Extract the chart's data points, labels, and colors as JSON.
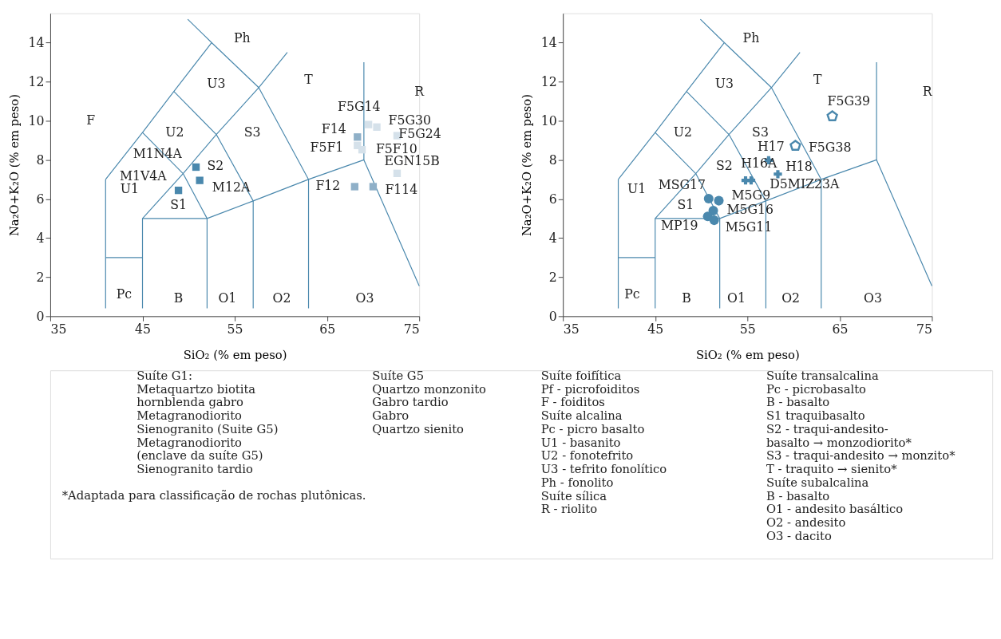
{
  "chart_data": [
    {
      "type": "scatter",
      "xlabel": "SiO₂ (% em peso)",
      "ylabel": "Na₂O+K₂O (% em peso)",
      "xlim": [
        35,
        75
      ],
      "xticks": [
        35,
        45,
        55,
        65,
        75
      ],
      "ylim": [
        0,
        15.5
      ],
      "yticks": [
        0,
        2,
        4,
        6,
        8,
        10,
        12,
        14
      ],
      "grid": false,
      "series": [
        {
          "type": "line",
          "color": "#4a88ad",
          "x": [
            41,
            41
          ],
          "values": [
            0.4,
            7
          ]
        },
        {
          "type": "line",
          "color": "#4a88ad",
          "x": [
            41,
            45
          ],
          "values": [
            3,
            3
          ]
        },
        {
          "type": "line",
          "color": "#4a88ad",
          "x": [
            45,
            45,
            52,
            52
          ],
          "values": [
            0.4,
            5,
            5,
            0.4
          ]
        },
        {
          "type": "line",
          "color": "#4a88ad",
          "x": [
            45,
            49.4,
            53,
            57.6,
            60.7
          ],
          "values": [
            5,
            7.3,
            9.3,
            11.7,
            13.5
          ]
        },
        {
          "type": "line",
          "color": "#4a88ad",
          "x": [
            41,
            45,
            48.4,
            52.5,
            49.9
          ],
          "values": [
            7,
            9.4,
            11.5,
            14,
            15.2
          ]
        },
        {
          "type": "line",
          "color": "#4a88ad",
          "x": [
            45,
            49.4,
            52
          ],
          "values": [
            9.4,
            7.3,
            5
          ]
        },
        {
          "type": "line",
          "color": "#4a88ad",
          "x": [
            48.4,
            53,
            57,
            57
          ],
          "values": [
            11.5,
            9.3,
            5.9,
            0.4
          ]
        },
        {
          "type": "line",
          "color": "#4a88ad",
          "x": [
            52.5,
            57.6,
            63,
            63
          ],
          "values": [
            14,
            11.7,
            7,
            0.4
          ]
        },
        {
          "type": "line",
          "color": "#4a88ad",
          "x": [
            52,
            57,
            63,
            69,
            75
          ],
          "values": [
            5,
            5.9,
            7,
            8,
            1.55
          ]
        },
        {
          "type": "line",
          "color": "#4a88ad",
          "x": [
            69,
            69
          ],
          "values": [
            8,
            13
          ]
        },
        {
          "type": "scatter",
          "marker": "square",
          "color": "#4a88ad",
          "x": [
            50.8,
            51.2,
            48.9
          ],
          "values": [
            7.63,
            6.95,
            6.44
          ],
          "value_labels": [
            "M1N4A",
            "M12A",
            "M1V4A"
          ]
        },
        {
          "type": "scatter",
          "marker": "square",
          "color": "#8fb0c8",
          "x": [
            68.3,
            68.0,
            70.0
          ],
          "values": [
            9.17,
            6.63,
            6.63
          ],
          "value_labels": [
            "F14",
            "F12",
            "F114"
          ]
        },
        {
          "type": "scatter",
          "marker": "square",
          "color": "#d5e1ea",
          "x": [
            69.5,
            70.4,
            72.6,
            68.3,
            68.8,
            72.6
          ],
          "values": [
            9.81,
            9.68,
            9.24,
            8.74,
            8.52,
            7.31
          ],
          "value_labels": [
            "F5G14",
            "F5G30",
            "F5G24",
            "F5F1",
            "F5F10",
            "EGN15B"
          ]
        }
      ],
      "annotations": [
        "Ph",
        "U3",
        "T",
        "R",
        "F",
        "U2",
        "S3",
        "U1",
        "S1",
        "S2",
        "Pc",
        "B",
        "O1",
        "O2",
        "O3",
        "Suíte G1:\nMetaquartzo biotita\nhornblenda gabro\nMetagranodiorito\nSienogranito (Suite G5)\nMetagranodiorito\n(enclave da suíte G5)\nSienogranito tardio",
        "Suíte G5\nQuartzo monzonito\nGabro tardio\nGabro\nQuartzo sienito",
        "*Adaptada para classificação de rochas plutônicas."
      ]
    },
    {
      "type": "scatter",
      "xlabel": "SiO₂ (% em peso)",
      "ylabel": "Na₂O+K₂O (% em peso)",
      "xlim": [
        35,
        75
      ],
      "xticks": [
        35,
        45,
        55,
        65,
        75
      ],
      "ylim": [
        0,
        15.5
      ],
      "yticks": [
        0,
        2,
        4,
        6,
        8,
        10,
        12,
        14
      ],
      "grid": false,
      "series": [
        {
          "type": "line",
          "color": "#4a88ad",
          "x": [
            41,
            41
          ],
          "values": [
            0.4,
            7
          ]
        },
        {
          "type": "line",
          "color": "#4a88ad",
          "x": [
            41,
            45
          ],
          "values": [
            3,
            3
          ]
        },
        {
          "type": "line",
          "color": "#4a88ad",
          "x": [
            45,
            45,
            52,
            52
          ],
          "values": [
            0.4,
            5,
            5,
            0.4
          ]
        },
        {
          "type": "line",
          "color": "#4a88ad",
          "x": [
            45,
            49.4,
            53,
            57.6,
            60.7
          ],
          "values": [
            5,
            7.3,
            9.3,
            11.7,
            13.5
          ]
        },
        {
          "type": "line",
          "color": "#4a88ad",
          "x": [
            41,
            45,
            48.4,
            52.5,
            49.9
          ],
          "values": [
            7,
            9.4,
            11.5,
            14,
            15.2
          ]
        },
        {
          "type": "line",
          "color": "#4a88ad",
          "x": [
            45,
            49.4,
            52
          ],
          "values": [
            9.4,
            7.3,
            5
          ]
        },
        {
          "type": "line",
          "color": "#4a88ad",
          "x": [
            48.4,
            53,
            57,
            57
          ],
          "values": [
            11.5,
            9.3,
            5.9,
            0.4
          ]
        },
        {
          "type": "line",
          "color": "#4a88ad",
          "x": [
            52.5,
            57.6,
            63,
            63
          ],
          "values": [
            14,
            11.7,
            7,
            0.4
          ]
        },
        {
          "type": "line",
          "color": "#4a88ad",
          "x": [
            52,
            57,
            63,
            69,
            75
          ],
          "values": [
            5,
            5.9,
            7,
            8,
            1.55
          ]
        },
        {
          "type": "line",
          "color": "#4a88ad",
          "x": [
            69,
            69
          ],
          "values": [
            8,
            13
          ]
        },
        {
          "type": "scatter",
          "marker": "circle",
          "color": "#4a88ad",
          "x": [
            50.8,
            51.9,
            51.3,
            50.7,
            51.4
          ],
          "values": [
            6.02,
            5.91,
            5.4,
            5.11,
            4.91
          ],
          "value_labels": [
            "MSG17",
            "M5G9",
            "M5G16",
            "MP19",
            "M5G11"
          ]
        },
        {
          "type": "scatter",
          "marker": "cross",
          "color": "#4a88ad",
          "x": [
            57.3,
            58.3,
            54.8,
            55.4
          ],
          "values": [
            7.98,
            7.27,
            6.95,
            6.95
          ],
          "value_labels": [
            "H17",
            "H18",
            "H16A",
            "D5MIZ23A"
          ]
        },
        {
          "type": "scatter",
          "color": "#4a88ad",
          "x": [
            64.2,
            60.2
          ],
          "values": [
            10.23,
            8.72
          ],
          "value_labels": [
            "F5G39",
            "F5G38"
          ]
        }
      ],
      "annotations": [
        "Ph",
        "U3",
        "T",
        "R",
        "U2",
        "S3",
        "U1",
        "S1",
        "S2",
        "Pc",
        "B",
        "O1",
        "O2",
        "O3",
        "Suíte foifítica\nPf - picrofoiditos\nF - foiditos\nSuíte alcalina\nPc - picro basalto\nU1 - basanito\nU2 - fonotefrito\nU3 - tefrito fonolítico\nPh - fonolito\nSuíte sílica\nR - riolito",
        "Suíte transalcalina\nPc - picrobasalto\nB - basalto\nS1 traquibasalto\nS2 - traqui-andesito-\nbasalto → monzodiorito*\nS3 - traqui-andesito → monzito*\nT - traquito → sienito*\nSuíte subalcalina\nB - basalto\nO1 - andesito basáltico\nO2 - andesito\nO3 - dacito"
      ]
    }
  ]
}
